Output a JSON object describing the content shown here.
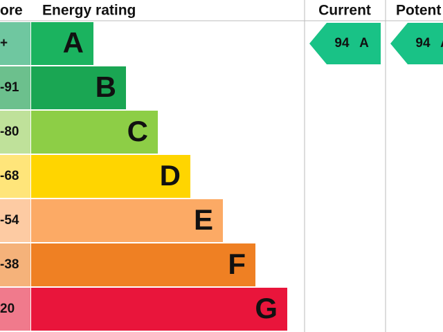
{
  "header": {
    "score": "ore",
    "rating": "Energy rating",
    "current": "Current",
    "potential": "Potent"
  },
  "bands": [
    {
      "range": "+",
      "letter": "A",
      "color": "#1bb35f",
      "score_color": "#6fc7a0"
    },
    {
      "range": "-91",
      "letter": "B",
      "color": "#1aa653",
      "score_color": "#6cc08d"
    },
    {
      "range": "-80",
      "letter": "C",
      "color": "#8dce46",
      "score_color": "#bfe19a"
    },
    {
      "range": "-68",
      "letter": "D",
      "color": "#ffd500",
      "score_color": "#ffe57a"
    },
    {
      "range": "-54",
      "letter": "E",
      "color": "#fcaa65",
      "score_color": "#fdcba3"
    },
    {
      "range": "-38",
      "letter": "F",
      "color": "#ef8023",
      "score_color": "#f5b27a"
    },
    {
      "range": "20",
      "letter": "G",
      "color": "#e9153b",
      "score_color": "#f07a8c"
    }
  ],
  "current": {
    "value": 94,
    "letter": "A",
    "color": "#19c286"
  },
  "potential": {
    "value": 94,
    "letter": "A",
    "color": "#19c286"
  }
}
